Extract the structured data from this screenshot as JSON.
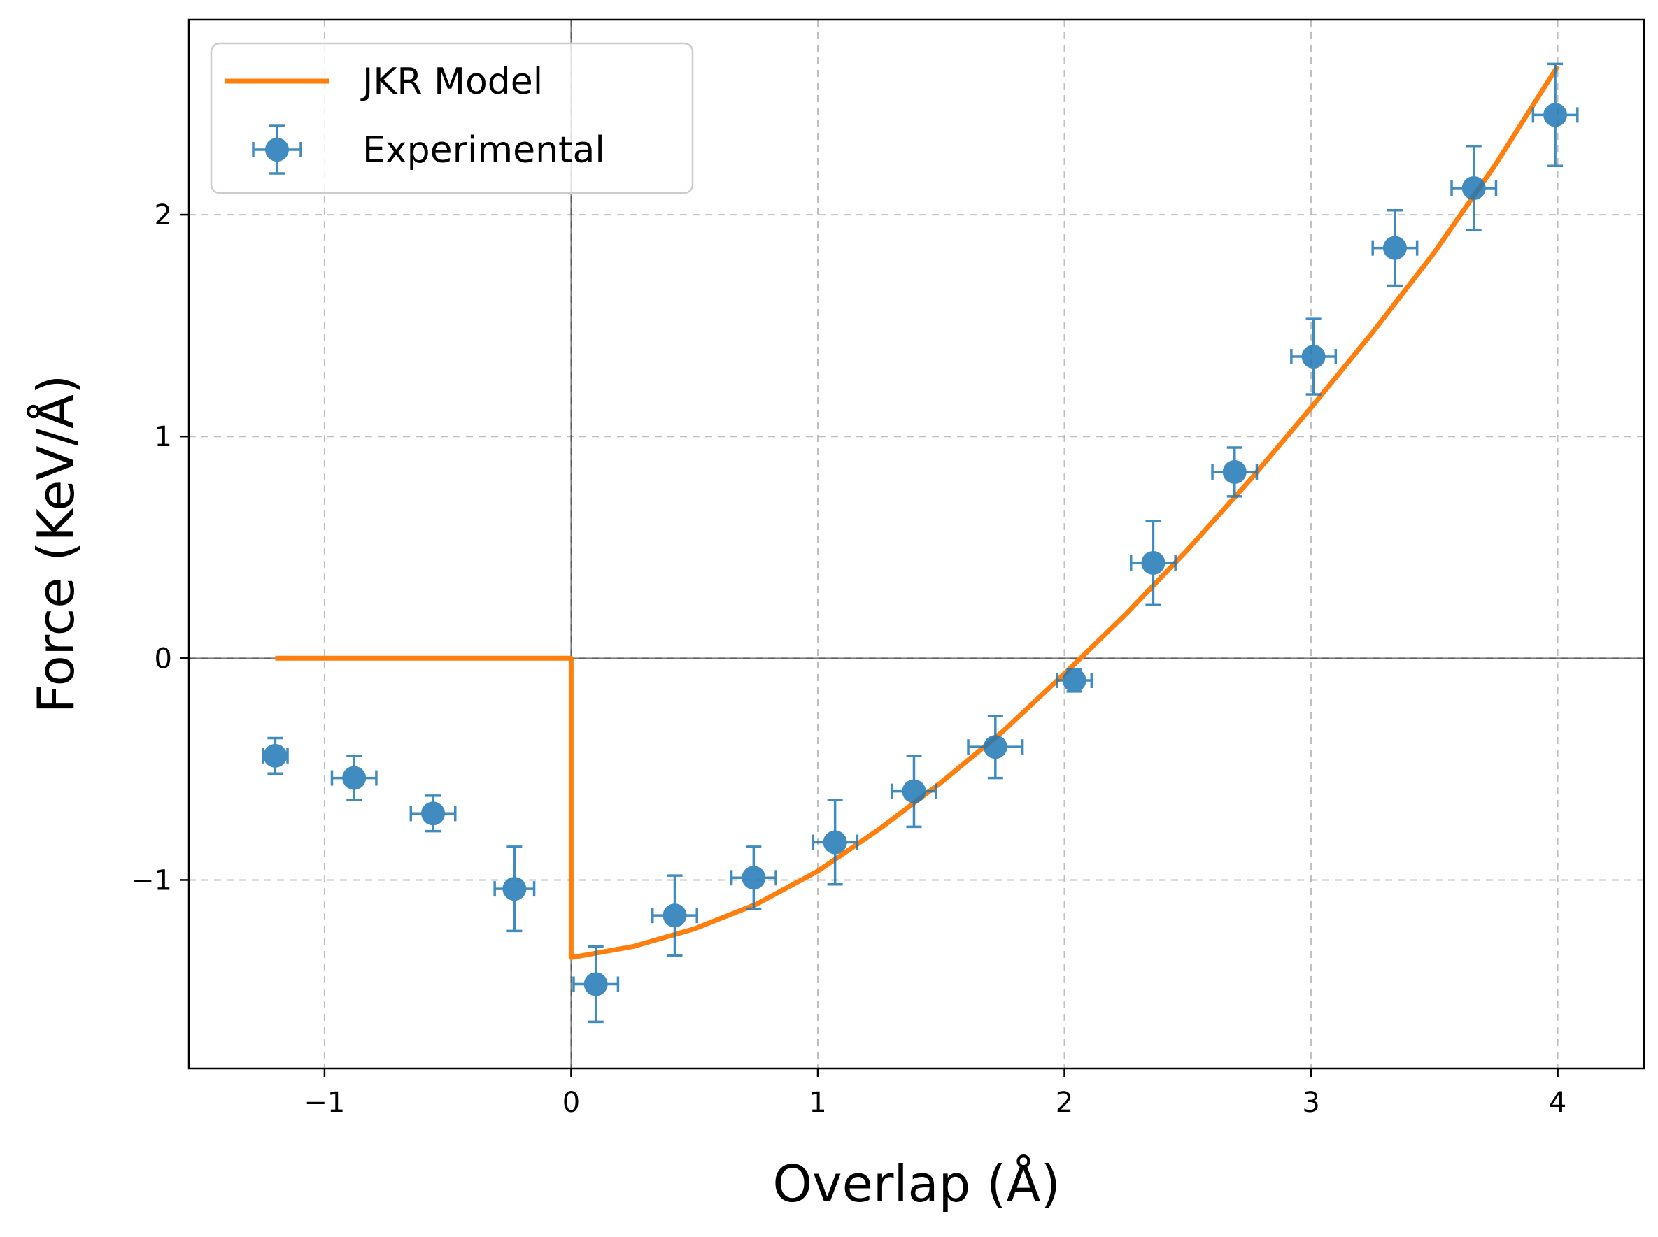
{
  "chart_data": {
    "type": "scatter",
    "xlabel": "Overlap (Å)",
    "ylabel": "Force (KeV/Å)",
    "xlim": [
      -1.55,
      4.35
    ],
    "ylim": [
      -1.85,
      2.88
    ],
    "grid": true,
    "legend_position": "top-left",
    "x_ticks": [
      -1,
      0,
      1,
      2,
      3,
      4
    ],
    "y_ticks": [
      -1,
      0,
      1,
      2
    ],
    "x_tick_labels": [
      "−1",
      "0",
      "1",
      "2",
      "3",
      "4"
    ],
    "y_tick_labels": [
      "−1",
      "0",
      "1",
      "2"
    ],
    "colors": {
      "model": "#ff7f0e",
      "experimental": "#1f77b4"
    },
    "series": [
      {
        "name": "JKR Model",
        "kind": "line",
        "x": [
          -1.2,
          -0.8,
          -0.4,
          0.0,
          0.0,
          0.25,
          0.5,
          0.75,
          1.0,
          1.25,
          1.5,
          1.75,
          2.0,
          2.25,
          2.5,
          2.75,
          3.0,
          3.25,
          3.5,
          3.75,
          4.0
        ],
        "y": [
          0.0,
          0.0,
          0.0,
          0.0,
          -1.35,
          -1.3,
          -1.22,
          -1.11,
          -0.96,
          -0.77,
          -0.56,
          -0.33,
          -0.07,
          0.2,
          0.49,
          0.8,
          1.13,
          1.47,
          1.83,
          2.23,
          2.67
        ]
      },
      {
        "name": "Experimental",
        "kind": "errorbar",
        "x": [
          -1.2,
          -0.88,
          -0.56,
          -0.23,
          0.1,
          0.42,
          0.74,
          1.07,
          1.39,
          1.72,
          2.04,
          2.36,
          2.69,
          3.01,
          3.34,
          3.66,
          3.99
        ],
        "y": [
          -0.44,
          -0.54,
          -0.7,
          -1.04,
          -1.47,
          -1.16,
          -0.99,
          -0.83,
          -0.6,
          -0.4,
          -0.1,
          0.43,
          0.84,
          1.36,
          1.85,
          2.12,
          2.45
        ],
        "yerr": [
          0.08,
          0.1,
          0.08,
          0.19,
          0.17,
          0.18,
          0.14,
          0.19,
          0.16,
          0.14,
          0.05,
          0.19,
          0.11,
          0.17,
          0.17,
          0.19,
          0.23
        ],
        "xerr": [
          0.05,
          0.09,
          0.09,
          0.08,
          0.09,
          0.09,
          0.09,
          0.09,
          0.09,
          0.11,
          0.07,
          0.09,
          0.09,
          0.09,
          0.09,
          0.09,
          0.09
        ]
      }
    ]
  }
}
